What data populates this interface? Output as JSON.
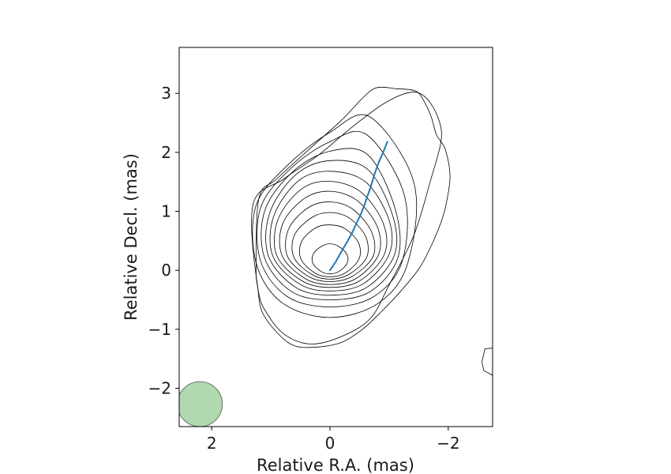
{
  "chart_data": {
    "type": "contour",
    "xlabel": "Relative R.A. (mas)",
    "ylabel": "Relative Decl. (mas)",
    "xlim": [
      2.55,
      -2.75
    ],
    "ylim": [
      -2.65,
      3.78
    ],
    "x_ticks": [
      2,
      0,
      -2
    ],
    "x_tick_labels": [
      "2",
      "0",
      "−2"
    ],
    "y_ticks": [
      3,
      2,
      1,
      0,
      -1,
      -2
    ],
    "y_tick_labels": [
      "3",
      "2",
      "1",
      "0",
      "−1",
      "−2"
    ],
    "grid": false,
    "legend": "none",
    "colors": {
      "contour": "#000000",
      "ridge_line": "#1f77b4",
      "beam": "#8fc98f",
      "beam_edge": "#6e6e6e"
    },
    "core_position": [
      0,
      0
    ],
    "contour_levels": [
      {
        "x": [
          0.28,
          0.14,
          0.0,
          -0.14,
          -0.28,
          -0.29,
          -0.15,
          0.0,
          0.15,
          0.29
        ],
        "y": [
          0.28,
          0.41,
          0.45,
          0.41,
          0.28,
          0.12,
          -0.02,
          -0.06,
          -0.02,
          0.12
        ]
      },
      {
        "x": [
          0.48,
          0.24,
          0.0,
          -0.25,
          -0.48,
          -0.49,
          -0.25,
          0.0,
          0.25,
          0.49
        ],
        "y": [
          0.49,
          0.72,
          0.77,
          0.71,
          0.47,
          0.19,
          -0.05,
          -0.11,
          -0.05,
          0.19
        ]
      },
      {
        "x": [
          0.6,
          0.3,
          0.0,
          -0.32,
          -0.6,
          -0.62,
          -0.32,
          0.0,
          0.31,
          0.61
        ],
        "y": [
          0.6,
          0.9,
          0.98,
          0.89,
          0.58,
          0.22,
          -0.07,
          -0.15,
          -0.07,
          0.22
        ]
      },
      {
        "x": [
          0.7,
          0.37,
          0.0,
          -0.38,
          -0.7,
          -0.73,
          -0.38,
          0.0,
          0.37,
          0.72
        ],
        "y": [
          0.7,
          1.06,
          1.16,
          1.04,
          0.66,
          0.24,
          -0.1,
          -0.19,
          -0.1,
          0.24
        ]
      },
      {
        "x": [
          0.8,
          0.43,
          0.0,
          -0.45,
          -0.8,
          -0.82,
          -0.44,
          0.0,
          0.42,
          0.81
        ],
        "y": [
          0.79,
          1.22,
          1.34,
          1.19,
          0.74,
          0.26,
          -0.14,
          -0.24,
          -0.14,
          0.25
        ]
      },
      {
        "x": [
          0.88,
          0.48,
          0.0,
          -0.52,
          -0.9,
          -0.92,
          -0.5,
          0.0,
          0.47,
          0.9
        ],
        "y": [
          0.86,
          1.38,
          1.51,
          1.33,
          0.8,
          0.27,
          -0.18,
          -0.29,
          -0.18,
          0.25
        ]
      },
      {
        "x": [
          0.95,
          0.53,
          0.0,
          -0.6,
          -1.0,
          -1.0,
          -0.56,
          0.0,
          0.52,
          0.97
        ],
        "y": [
          0.92,
          1.52,
          1.68,
          1.5,
          0.85,
          0.27,
          -0.23,
          -0.35,
          -0.23,
          0.25
        ]
      },
      {
        "x": [
          1.02,
          0.58,
          0.0,
          -0.64,
          -1.06,
          -1.09,
          -0.62,
          0.0,
          0.58,
          1.04
        ],
        "y": [
          0.97,
          1.62,
          1.86,
          1.71,
          0.93,
          0.26,
          -0.29,
          -0.42,
          -0.29,
          0.24
        ]
      },
      {
        "x": [
          1.1,
          0.62,
          0.0,
          -0.64,
          -1.1,
          -1.15,
          -0.68,
          0.0,
          0.65,
          1.11
        ],
        "y": [
          1.02,
          1.68,
          2.02,
          1.96,
          1.05,
          0.22,
          -0.36,
          -0.5,
          -0.36,
          0.22
        ]
      },
      {
        "x": [
          1.17,
          0.66,
          0.0,
          -0.62,
          -1.25,
          -1.23,
          -0.75,
          0.0,
          0.73,
          1.18
        ],
        "y": [
          1.07,
          1.73,
          2.18,
          2.3,
          1.3,
          0.18,
          -0.44,
          -0.62,
          -0.44,
          0.18
        ]
      },
      {
        "x": [
          1.25,
          0.72,
          0.0,
          -0.68,
          -1.42,
          -1.32,
          -0.83,
          0.0,
          0.81,
          1.25
        ],
        "y": [
          1.1,
          1.78,
          2.34,
          2.6,
          1.48,
          0.14,
          -0.55,
          -0.8,
          -0.55,
          0.13
        ]
      },
      {
        "x": [
          1.3,
          0.78,
          0.2,
          -0.4,
          -0.95,
          -1.38,
          -1.63,
          -1.83,
          -1.88,
          -1.7,
          -1.42,
          -1.0,
          -0.68,
          -0.2,
          0.3,
          0.72,
          1.02,
          1.22
        ],
        "y": [
          1.12,
          1.55,
          1.95,
          2.45,
          2.85,
          3.02,
          2.92,
          2.58,
          2.2,
          1.52,
          0.6,
          -0.25,
          -0.82,
          -1.12,
          -1.25,
          -1.12,
          -0.8,
          -0.3
        ]
      },
      {
        "x": [
          1.2,
          0.9,
          0.3,
          -0.2,
          -0.58,
          -0.8,
          -1.12,
          -1.45,
          -1.6,
          -1.72,
          -1.8,
          -1.95,
          -2.03,
          -1.97,
          -1.9,
          -1.75,
          -1.52,
          -1.2,
          -0.85,
          -0.55,
          -0.2,
          0.2,
          0.6,
          0.9,
          1.15,
          1.22,
          1.25
        ],
        "y": [
          1.23,
          1.55,
          2.1,
          2.55,
          2.95,
          3.1,
          3.08,
          3.04,
          2.85,
          2.58,
          2.3,
          2.05,
          1.6,
          1.15,
          0.88,
          0.5,
          0.05,
          -0.35,
          -0.72,
          -1.0,
          -1.22,
          -1.3,
          -1.28,
          -1.05,
          -0.7,
          -0.3,
          0.05
        ]
      }
    ],
    "edge_contour": {
      "x": [
        -2.75,
        -2.62,
        -2.57,
        -2.6,
        -2.75
      ],
      "y": [
        -1.32,
        -1.33,
        -1.55,
        -1.7,
        -1.78
      ]
    },
    "ridge_line": {
      "x": [
        0.0,
        -0.1,
        -0.2,
        -0.3,
        -0.38,
        -0.45,
        -0.52,
        -0.58,
        -0.63,
        -0.69,
        -0.75,
        -0.82,
        -0.9,
        -0.97
      ],
      "y": [
        0.0,
        0.15,
        0.33,
        0.5,
        0.65,
        0.8,
        0.95,
        1.1,
        1.25,
        1.42,
        1.62,
        1.82,
        2.0,
        2.18
      ]
    },
    "beam": {
      "x": 2.2,
      "y": -2.27,
      "radius": 0.38
    }
  }
}
